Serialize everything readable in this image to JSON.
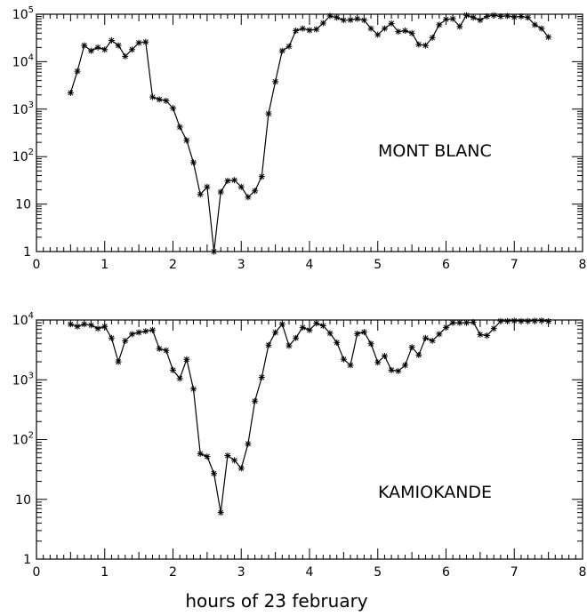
{
  "xlabel": "hours of 23 february",
  "chart_data": [
    {
      "type": "line",
      "title": "",
      "annotation": "MONT BLANC",
      "xlabel": "",
      "ylabel": "",
      "xlim": [
        0,
        8
      ],
      "ylim": [
        1,
        100000
      ],
      "yscale": "log",
      "grid": false,
      "marker": "asterisk",
      "x_ticks": [
        "0",
        "1",
        "2",
        "3",
        "4",
        "5",
        "6",
        "7",
        "8"
      ],
      "y_ticks": [
        {
          "base": "1",
          "exp": ""
        },
        {
          "base": "10",
          "exp": ""
        },
        {
          "base": "10",
          "exp": "2"
        },
        {
          "base": "10",
          "exp": "3"
        },
        {
          "base": "10",
          "exp": "4"
        },
        {
          "base": "10",
          "exp": "5"
        }
      ],
      "series": [
        {
          "x": [
            0.5,
            0.6,
            0.7,
            0.8,
            0.9,
            1.0,
            1.1,
            1.2,
            1.3,
            1.4,
            1.5,
            1.6,
            1.7,
            1.8,
            1.9,
            2.0,
            2.1,
            2.2,
            2.3,
            2.4,
            2.5,
            2.6,
            2.7,
            2.8,
            2.9,
            3.0,
            3.1,
            3.2,
            3.3,
            3.4,
            3.5,
            3.6,
            3.7,
            3.8,
            3.9,
            4.0,
            4.1,
            4.2,
            4.3,
            4.4,
            4.5,
            4.6,
            4.7,
            4.8,
            4.9,
            5.0,
            5.1,
            5.2,
            5.3,
            5.4,
            5.5,
            5.6,
            5.7,
            5.8,
            5.9,
            6.0,
            6.1,
            6.2,
            6.3,
            6.4,
            6.5,
            6.6,
            6.7,
            6.8,
            6.9,
            7.0,
            7.1,
            7.2,
            7.3,
            7.4,
            7.5
          ],
          "y": [
            2200,
            6300,
            22000,
            17000,
            20000,
            18000,
            28000,
            22000,
            13000,
            18000,
            25000,
            26000,
            1800,
            1600,
            1500,
            1050,
            420,
            220,
            75,
            16,
            23,
            1,
            18,
            31,
            32,
            23,
            14,
            19,
            38,
            800,
            3800,
            17000,
            21000,
            45000,
            50000,
            46000,
            48000,
            65000,
            92000,
            85000,
            75000,
            76000,
            80000,
            75000,
            50000,
            37000,
            50000,
            64000,
            43000,
            45000,
            40000,
            23000,
            22000,
            32000,
            60000,
            78000,
            80000,
            55000,
            95000,
            85000,
            75000,
            90000,
            95000,
            90000,
            92000,
            87000,
            90000,
            85000,
            60000,
            50000,
            33000
          ]
        }
      ]
    },
    {
      "type": "line",
      "title": "",
      "annotation": "KAMIOKANDE",
      "xlabel": "hours of 23 february",
      "ylabel": "",
      "xlim": [
        0,
        8
      ],
      "ylim": [
        1,
        10000
      ],
      "yscale": "log",
      "grid": false,
      "marker": "asterisk",
      "x_ticks": [
        "0",
        "1",
        "2",
        "3",
        "4",
        "5",
        "6",
        "7",
        "8"
      ],
      "y_ticks": [
        {
          "base": "1",
          "exp": ""
        },
        {
          "base": "10",
          "exp": ""
        },
        {
          "base": "10",
          "exp": "2"
        },
        {
          "base": "10",
          "exp": "3"
        },
        {
          "base": "10",
          "exp": "4"
        }
      ],
      "series": [
        {
          "x": [
            0.5,
            0.6,
            0.7,
            0.8,
            0.9,
            1.0,
            1.1,
            1.2,
            1.3,
            1.4,
            1.5,
            1.6,
            1.7,
            1.8,
            1.9,
            2.0,
            2.1,
            2.2,
            2.3,
            2.4,
            2.5,
            2.6,
            2.7,
            2.8,
            2.9,
            3.0,
            3.1,
            3.2,
            3.3,
            3.4,
            3.5,
            3.6,
            3.7,
            3.8,
            3.9,
            4.0,
            4.1,
            4.2,
            4.3,
            4.4,
            4.5,
            4.6,
            4.7,
            4.8,
            4.9,
            5.0,
            5.1,
            5.2,
            5.3,
            5.4,
            5.5,
            5.6,
            5.7,
            5.8,
            5.9,
            6.0,
            6.1,
            6.2,
            6.3,
            6.4,
            6.5,
            6.6,
            6.7,
            6.8,
            6.9,
            7.0,
            7.1,
            7.2,
            7.3,
            7.4,
            7.5
          ],
          "y": [
            8500,
            7800,
            8500,
            8200,
            7200,
            7800,
            5000,
            2000,
            4500,
            5800,
            6200,
            6500,
            6800,
            3300,
            3100,
            1450,
            1050,
            2200,
            700,
            58,
            52,
            27,
            6,
            54,
            45,
            33,
            85,
            440,
            1100,
            3800,
            6200,
            8500,
            3700,
            5000,
            7500,
            6800,
            8800,
            8000,
            6000,
            4200,
            2200,
            1750,
            5900,
            6300,
            4000,
            1950,
            2500,
            1450,
            1400,
            1750,
            3500,
            2600,
            5000,
            4500,
            5800,
            7500,
            9000,
            9000,
            9000,
            9200,
            5700,
            5500,
            7200,
            9600,
            9600,
            9700,
            9600,
            9600,
            9700,
            9800,
            9500
          ]
        }
      ]
    }
  ]
}
